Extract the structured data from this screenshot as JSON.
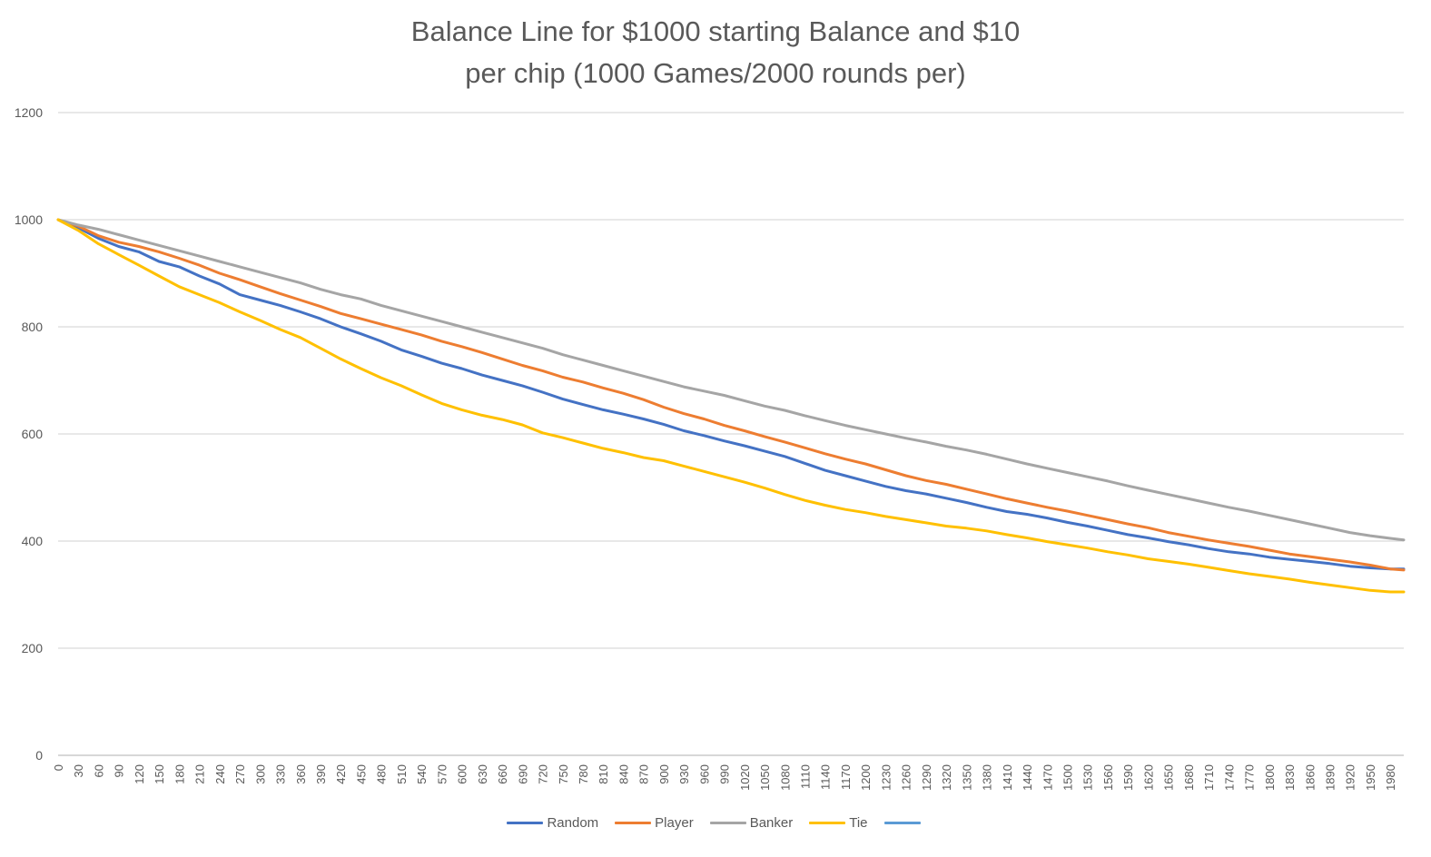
{
  "chart_data": {
    "type": "line",
    "title_lines": [
      "Balance Line for $1000 starting Balance and $10",
      "per chip (1000 Games/2000 rounds per)"
    ],
    "xlabel": "",
    "ylabel": "",
    "ylim": [
      0,
      1200
    ],
    "y_ticks": [
      0,
      200,
      400,
      600,
      800,
      1000,
      1200
    ],
    "xlim": [
      0,
      2000
    ],
    "x_tick_step": 30,
    "x_tick_max": 1980,
    "grid": true,
    "legend_position": "bottom",
    "series": [
      {
        "name": "Random",
        "color": "#4472C4",
        "x": [
          0,
          30,
          60,
          90,
          120,
          150,
          180,
          210,
          240,
          270,
          300,
          330,
          360,
          390,
          420,
          450,
          480,
          510,
          540,
          570,
          600,
          630,
          660,
          690,
          720,
          750,
          780,
          810,
          840,
          870,
          900,
          930,
          960,
          990,
          1020,
          1050,
          1080,
          1110,
          1140,
          1170,
          1200,
          1230,
          1260,
          1290,
          1320,
          1350,
          1380,
          1410,
          1440,
          1470,
          1500,
          1530,
          1560,
          1590,
          1620,
          1650,
          1680,
          1710,
          1740,
          1770,
          1800,
          1830,
          1860,
          1890,
          1920,
          1950,
          1980,
          2000
        ],
        "y": [
          1000,
          985,
          965,
          950,
          940,
          922,
          912,
          895,
          880,
          860,
          850,
          840,
          828,
          815,
          800,
          787,
          773,
          757,
          745,
          732,
          722,
          710,
          700,
          690,
          678,
          665,
          655,
          645,
          637,
          628,
          618,
          606,
          597,
          587,
          578,
          568,
          558,
          545,
          532,
          522,
          512,
          502,
          494,
          488,
          480,
          472,
          463,
          455,
          450,
          443,
          435,
          428,
          420,
          412,
          406,
          399,
          393,
          386,
          380,
          376,
          370,
          366,
          362,
          358,
          353,
          350,
          348,
          348
        ]
      },
      {
        "name": "Player",
        "color": "#ED7D31",
        "x": [
          0,
          30,
          60,
          90,
          120,
          150,
          180,
          210,
          240,
          270,
          300,
          330,
          360,
          390,
          420,
          450,
          480,
          510,
          540,
          570,
          600,
          630,
          660,
          690,
          720,
          750,
          780,
          810,
          840,
          870,
          900,
          930,
          960,
          990,
          1020,
          1050,
          1080,
          1110,
          1140,
          1170,
          1200,
          1230,
          1260,
          1290,
          1320,
          1350,
          1380,
          1410,
          1440,
          1470,
          1500,
          1530,
          1560,
          1590,
          1620,
          1650,
          1680,
          1710,
          1740,
          1770,
          1800,
          1830,
          1860,
          1890,
          1920,
          1950,
          1980,
          2000
        ],
        "y": [
          1000,
          988,
          970,
          958,
          950,
          940,
          928,
          915,
          900,
          888,
          875,
          862,
          850,
          838,
          825,
          815,
          805,
          795,
          785,
          773,
          763,
          752,
          740,
          728,
          718,
          706,
          697,
          686,
          676,
          664,
          650,
          638,
          628,
          616,
          606,
          595,
          585,
          574,
          563,
          553,
          544,
          533,
          522,
          513,
          506,
          497,
          488,
          479,
          471,
          463,
          456,
          448,
          440,
          432,
          425,
          416,
          409,
          402,
          396,
          390,
          383,
          376,
          371,
          366,
          361,
          355,
          348,
          346
        ]
      },
      {
        "name": "Banker",
        "color": "#A5A5A5",
        "x": [
          0,
          30,
          60,
          90,
          120,
          150,
          180,
          210,
          240,
          270,
          300,
          330,
          360,
          390,
          420,
          450,
          480,
          510,
          540,
          570,
          600,
          630,
          660,
          690,
          720,
          750,
          780,
          810,
          840,
          870,
          900,
          930,
          960,
          990,
          1020,
          1050,
          1080,
          1110,
          1140,
          1170,
          1200,
          1230,
          1260,
          1290,
          1320,
          1350,
          1380,
          1410,
          1440,
          1470,
          1500,
          1530,
          1560,
          1590,
          1620,
          1650,
          1680,
          1710,
          1740,
          1770,
          1800,
          1830,
          1860,
          1890,
          1920,
          1950,
          1980,
          2000
        ],
        "y": [
          1000,
          990,
          982,
          972,
          962,
          952,
          942,
          932,
          922,
          912,
          902,
          892,
          882,
          870,
          860,
          852,
          840,
          830,
          820,
          810,
          800,
          790,
          780,
          770,
          760,
          748,
          738,
          728,
          718,
          708,
          698,
          688,
          680,
          672,
          662,
          652,
          644,
          634,
          625,
          616,
          608,
          600,
          592,
          585,
          577,
          570,
          562,
          553,
          544,
          536,
          528,
          520,
          512,
          503,
          495,
          487,
          479,
          471,
          463,
          456,
          448,
          440,
          432,
          424,
          416,
          410,
          405,
          402
        ]
      },
      {
        "name": "Tie",
        "color": "#FFC000",
        "x": [
          0,
          30,
          60,
          90,
          120,
          150,
          180,
          210,
          240,
          270,
          300,
          330,
          360,
          390,
          420,
          450,
          480,
          510,
          540,
          570,
          600,
          630,
          660,
          690,
          720,
          750,
          780,
          810,
          840,
          870,
          900,
          930,
          960,
          990,
          1020,
          1050,
          1080,
          1110,
          1140,
          1170,
          1200,
          1230,
          1260,
          1290,
          1320,
          1350,
          1380,
          1410,
          1440,
          1470,
          1500,
          1530,
          1560,
          1590,
          1620,
          1650,
          1680,
          1710,
          1740,
          1770,
          1800,
          1830,
          1860,
          1890,
          1920,
          1950,
          1980,
          2000
        ],
        "y": [
          1000,
          980,
          955,
          935,
          915,
          895,
          875,
          860,
          845,
          828,
          812,
          795,
          780,
          760,
          740,
          722,
          705,
          690,
          673,
          657,
          645,
          635,
          627,
          617,
          602,
          593,
          583,
          573,
          565,
          556,
          550,
          540,
          530,
          520,
          510,
          499,
          487,
          476,
          467,
          459,
          453,
          446,
          440,
          434,
          428,
          424,
          419,
          412,
          406,
          399,
          393,
          387,
          380,
          374,
          367,
          362,
          357,
          351,
          345,
          339,
          334,
          329,
          323,
          318,
          313,
          308,
          305,
          305
        ]
      },
      {
        "name": "",
        "color": "#5B9BD5",
        "x": [],
        "y": []
      }
    ]
  }
}
